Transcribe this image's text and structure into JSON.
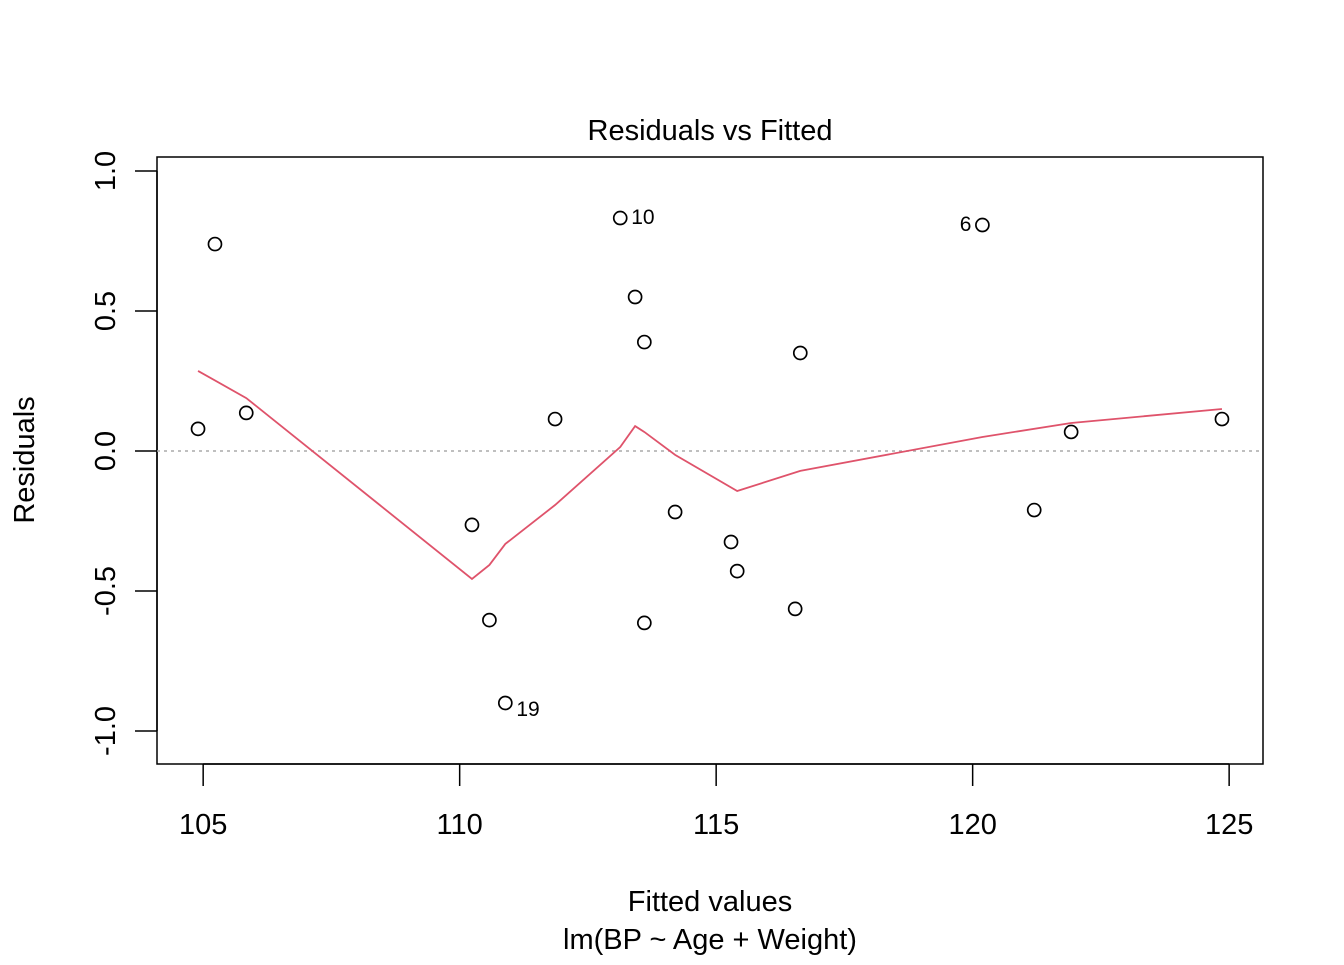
{
  "chart_data": {
    "type": "scatter",
    "title": "Residuals vs Fitted",
    "xlabel": "Fitted values",
    "subtitle": "lm(BP ~ Age + Weight)",
    "ylabel": "Residuals",
    "xlim": [
      104.1,
      125.66
    ],
    "ylim": [
      -1.118,
      1.05
    ],
    "xticks": [
      105,
      110,
      115,
      120,
      125
    ],
    "xtick_labels": [
      "105",
      "110",
      "115",
      "120",
      "125"
    ],
    "yticks": [
      -1.0,
      -0.5,
      0.0,
      0.5,
      1.0
    ],
    "ytick_labels": [
      "-1.0",
      "-0.5",
      "0.0",
      "0.5",
      "1.0"
    ],
    "reference_line": {
      "y": 0,
      "style": "dotted",
      "color": "#aaaaaa"
    },
    "points": {
      "x": [
        104.9,
        105.23,
        105.84,
        110.24,
        110.58,
        110.89,
        111.86,
        113.13,
        113.42,
        113.6,
        113.6,
        114.2,
        115.29,
        115.41,
        116.54,
        116.64,
        120.19,
        121.2,
        121.92,
        124.86
      ],
      "y": [
        0.079,
        0.739,
        0.136,
        -0.264,
        -0.604,
        -0.9,
        0.114,
        0.832,
        0.55,
        0.389,
        -0.614,
        -0.218,
        -0.325,
        -0.429,
        -0.564,
        0.35,
        0.807,
        -0.211,
        0.068,
        0.114
      ]
    },
    "point_labels": [
      {
        "label": "10",
        "x": 113.13,
        "y": 0.832,
        "side": "right"
      },
      {
        "label": "6",
        "x": 120.19,
        "y": 0.807,
        "side": "left"
      },
      {
        "label": "19",
        "x": 110.89,
        "y": -0.9,
        "side": "right"
      }
    ],
    "smooth_line": {
      "color": "#DF536B",
      "x": [
        104.9,
        105.84,
        110.24,
        110.58,
        110.89,
        111.86,
        113.13,
        113.42,
        113.6,
        114.2,
        115.41,
        116.64,
        120.19,
        121.92,
        124.86
      ],
      "y": [
        0.286,
        0.189,
        -0.457,
        -0.407,
        -0.332,
        -0.193,
        0.014,
        0.089,
        0.068,
        -0.014,
        -0.143,
        -0.071,
        0.05,
        0.1,
        0.15
      ]
    },
    "grid": false
  }
}
